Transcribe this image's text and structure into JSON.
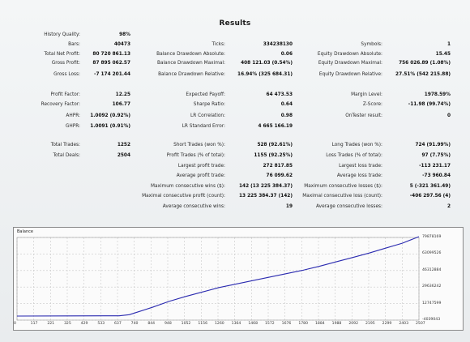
{
  "title": "Results",
  "rows": [
    [
      {
        "label": "History Quality:",
        "value": "98%"
      },
      null,
      null
    ],
    [
      {
        "label": "Bars:",
        "value": "40473"
      },
      {
        "label": "Ticks:",
        "value": "334238130"
      },
      {
        "label": "Symbols:",
        "value": "1"
      }
    ],
    [
      {
        "label": "Total Net Profit:",
        "value": "80 720 861.13"
      },
      {
        "label": "Balance Drawdown Absolute:",
        "value": "0.06"
      },
      {
        "label": "Equity Drawdown Absolute:",
        "value": "15.45"
      }
    ],
    [
      {
        "label": "Gross Profit:",
        "value": "87 895 062.57"
      },
      {
        "label": "Balance Drawdown Maximal:",
        "value": "408 121.03 (0.54%)"
      },
      {
        "label": "Equity Drawdown Maximal:",
        "value": "756 026.89 (1.08%)"
      }
    ],
    [
      {
        "label": "Gross Loss:",
        "value": "-7 174 201.44"
      },
      {
        "label": "Balance Drawdown Relative:",
        "value": "16.94% (325 684.31)"
      },
      {
        "label": "Equity Drawdown Relative:",
        "value": "27.51% (542 215.88)"
      }
    ],
    [
      {
        "label": "Profit Factor:",
        "value": "12.25"
      },
      {
        "label": "Expected Payoff:",
        "value": "64 473.53"
      },
      {
        "label": "Margin Level:",
        "value": "1978.59%"
      }
    ],
    [
      {
        "label": "Recovery Factor:",
        "value": "106.77"
      },
      {
        "label": "Sharpe Ratio:",
        "value": "0.64"
      },
      {
        "label": "Z-Score:",
        "value": "-11.98 (99.74%)"
      }
    ],
    [
      {
        "label": "AHPR:",
        "value": "1.0092 (0.92%)"
      },
      {
        "label": "LR Correlation:",
        "value": "0.98"
      },
      {
        "label": "OnTester result:",
        "value": "0"
      }
    ],
    [
      {
        "label": "GHPR:",
        "value": "1.0091 (0.91%)"
      },
      {
        "label": "LR Standard Error:",
        "value": "4 665 166.19"
      },
      null
    ],
    [
      {
        "label": "Total Trades:",
        "value": "1252"
      },
      {
        "label": "Short Trades (won %):",
        "value": "528 (92.61%)"
      },
      {
        "label": "Long Trades (won %):",
        "value": "724 (91.99%)"
      }
    ],
    [
      {
        "label": "Total Deals:",
        "value": "2504"
      },
      {
        "label": "Profit Trades (% of total):",
        "value": "1155 (92.25%)"
      },
      {
        "label": "Loss Trades (% of total):",
        "value": "97 (7.75%)"
      }
    ],
    [
      null,
      {
        "label": "Largest profit trade:",
        "value": "272 817.85"
      },
      {
        "label": "Largest loss trade:",
        "value": "-113 231.17"
      }
    ],
    [
      null,
      {
        "label": "Average profit trade:",
        "value": "76 099.62"
      },
      {
        "label": "Average loss trade:",
        "value": "-73 960.84"
      }
    ],
    [
      null,
      {
        "label": "Maximum consecutive wins ($):",
        "value": "142 (13 225 384.37)"
      },
      {
        "label": "Maximum consecutive losses ($):",
        "value": "5 (-321 361.49)"
      }
    ],
    [
      null,
      {
        "label": "Maximal consecutive profit (count):",
        "value": "13 225 384.37 (142)"
      },
      {
        "label": "Maximal consecutive loss (count):",
        "value": "-406 297.56 (4)"
      }
    ],
    [
      null,
      {
        "label": "Average consecutive wins:",
        "value": "19"
      },
      {
        "label": "Average consecutive losses:",
        "value": "2"
      }
    ]
  ],
  "chart": {
    "title": "Balance",
    "y_ticks": [
      "79878169",
      "63099526",
      "46312884",
      "29636242",
      "12747599",
      "-4039043"
    ],
    "x_ticks": [
      "0",
      "117",
      "221",
      "325",
      "429",
      "533",
      "637",
      "740",
      "844",
      "948",
      "1052",
      "1156",
      "1260",
      "1364",
      "1468",
      "1572",
      "1676",
      "1780",
      "1884",
      "1988",
      "2092",
      "2195",
      "2299",
      "2403",
      "2507"
    ],
    "line_color": "#2b2bb0"
  },
  "chart_data": {
    "type": "line",
    "title": "Balance",
    "xlabel": "",
    "ylabel": "",
    "ylim": [
      -4039043,
      79878169
    ],
    "xlim": [
      0,
      2507
    ],
    "x": [
      0,
      325,
      637,
      700,
      740,
      844,
      948,
      1052,
      1156,
      1260,
      1364,
      1468,
      1572,
      1676,
      1780,
      1884,
      1988,
      2092,
      2195,
      2299,
      2403,
      2507
    ],
    "y": [
      100000,
      200000,
      300000,
      1500000,
      3500000,
      9000000,
      15000000,
      20000000,
      24500000,
      29000000,
      32500000,
      36000000,
      39500000,
      43000000,
      46500000,
      50500000,
      55000000,
      59500000,
      64000000,
      69000000,
      74000000,
      80720861
    ]
  }
}
